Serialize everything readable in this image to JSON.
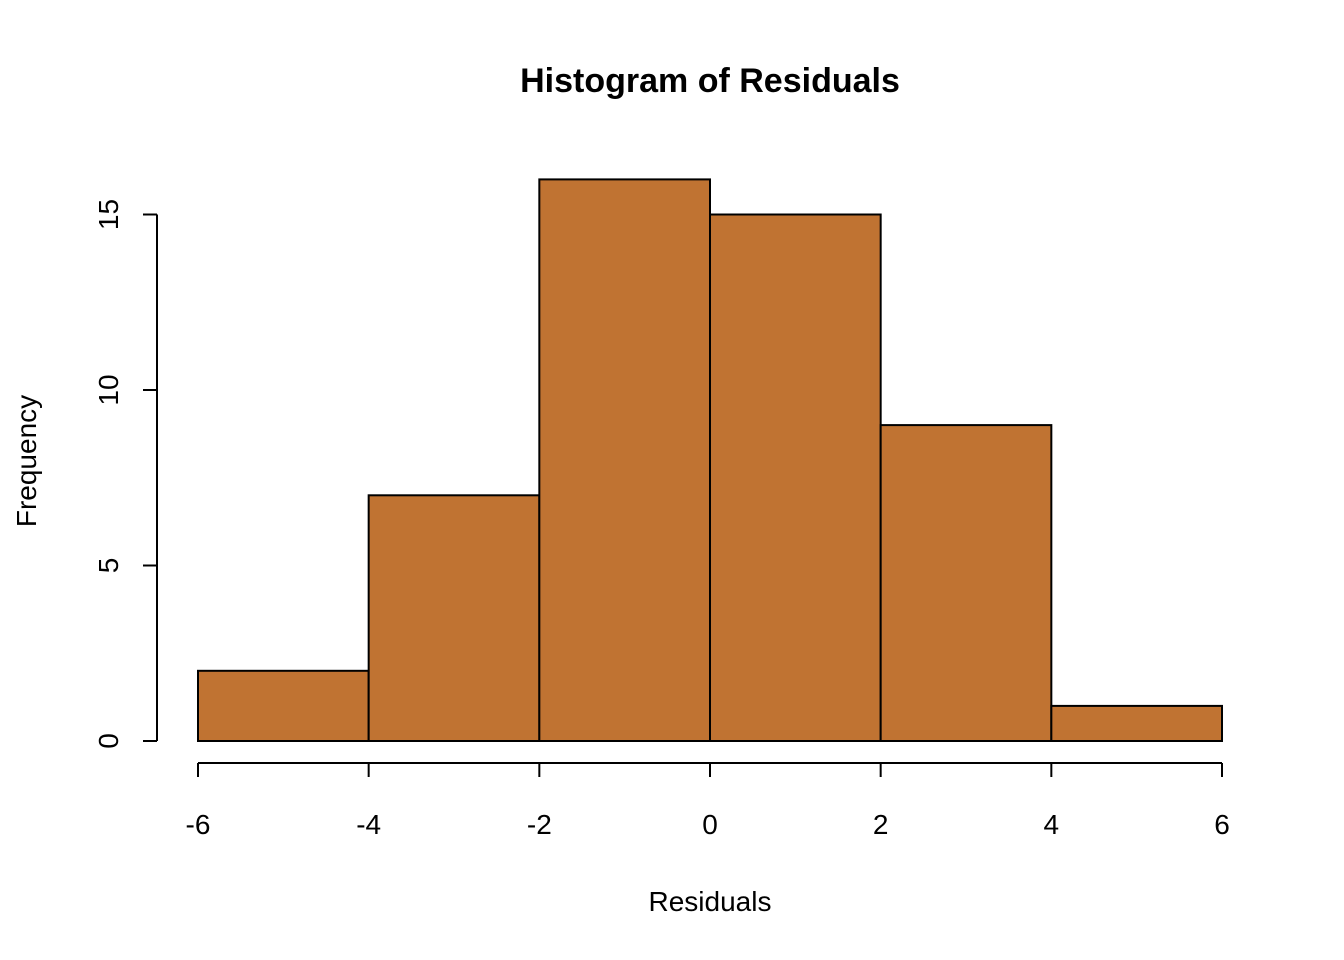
{
  "chart_data": {
    "type": "bar",
    "title": "Histogram of Residuals",
    "xlabel": "Residuals",
    "ylabel": "Frequency",
    "bins": [
      {
        "start": -6,
        "end": -4,
        "count": 2
      },
      {
        "start": -4,
        "end": -2,
        "count": 7
      },
      {
        "start": -2,
        "end": 0,
        "count": 16
      },
      {
        "start": 0,
        "end": 2,
        "count": 15
      },
      {
        "start": 2,
        "end": 4,
        "count": 9
      },
      {
        "start": 4,
        "end": 6,
        "count": 1
      }
    ],
    "xlim": [
      -6,
      6
    ],
    "ylim": [
      0,
      16
    ],
    "xticks": [
      -6,
      -4,
      -2,
      0,
      2,
      4,
      6
    ],
    "yticks": [
      0,
      5,
      10,
      15
    ],
    "grid": false,
    "legend": "none",
    "colors": {
      "bar_fill": "#C07332",
      "bar_border": "#000000"
    }
  }
}
